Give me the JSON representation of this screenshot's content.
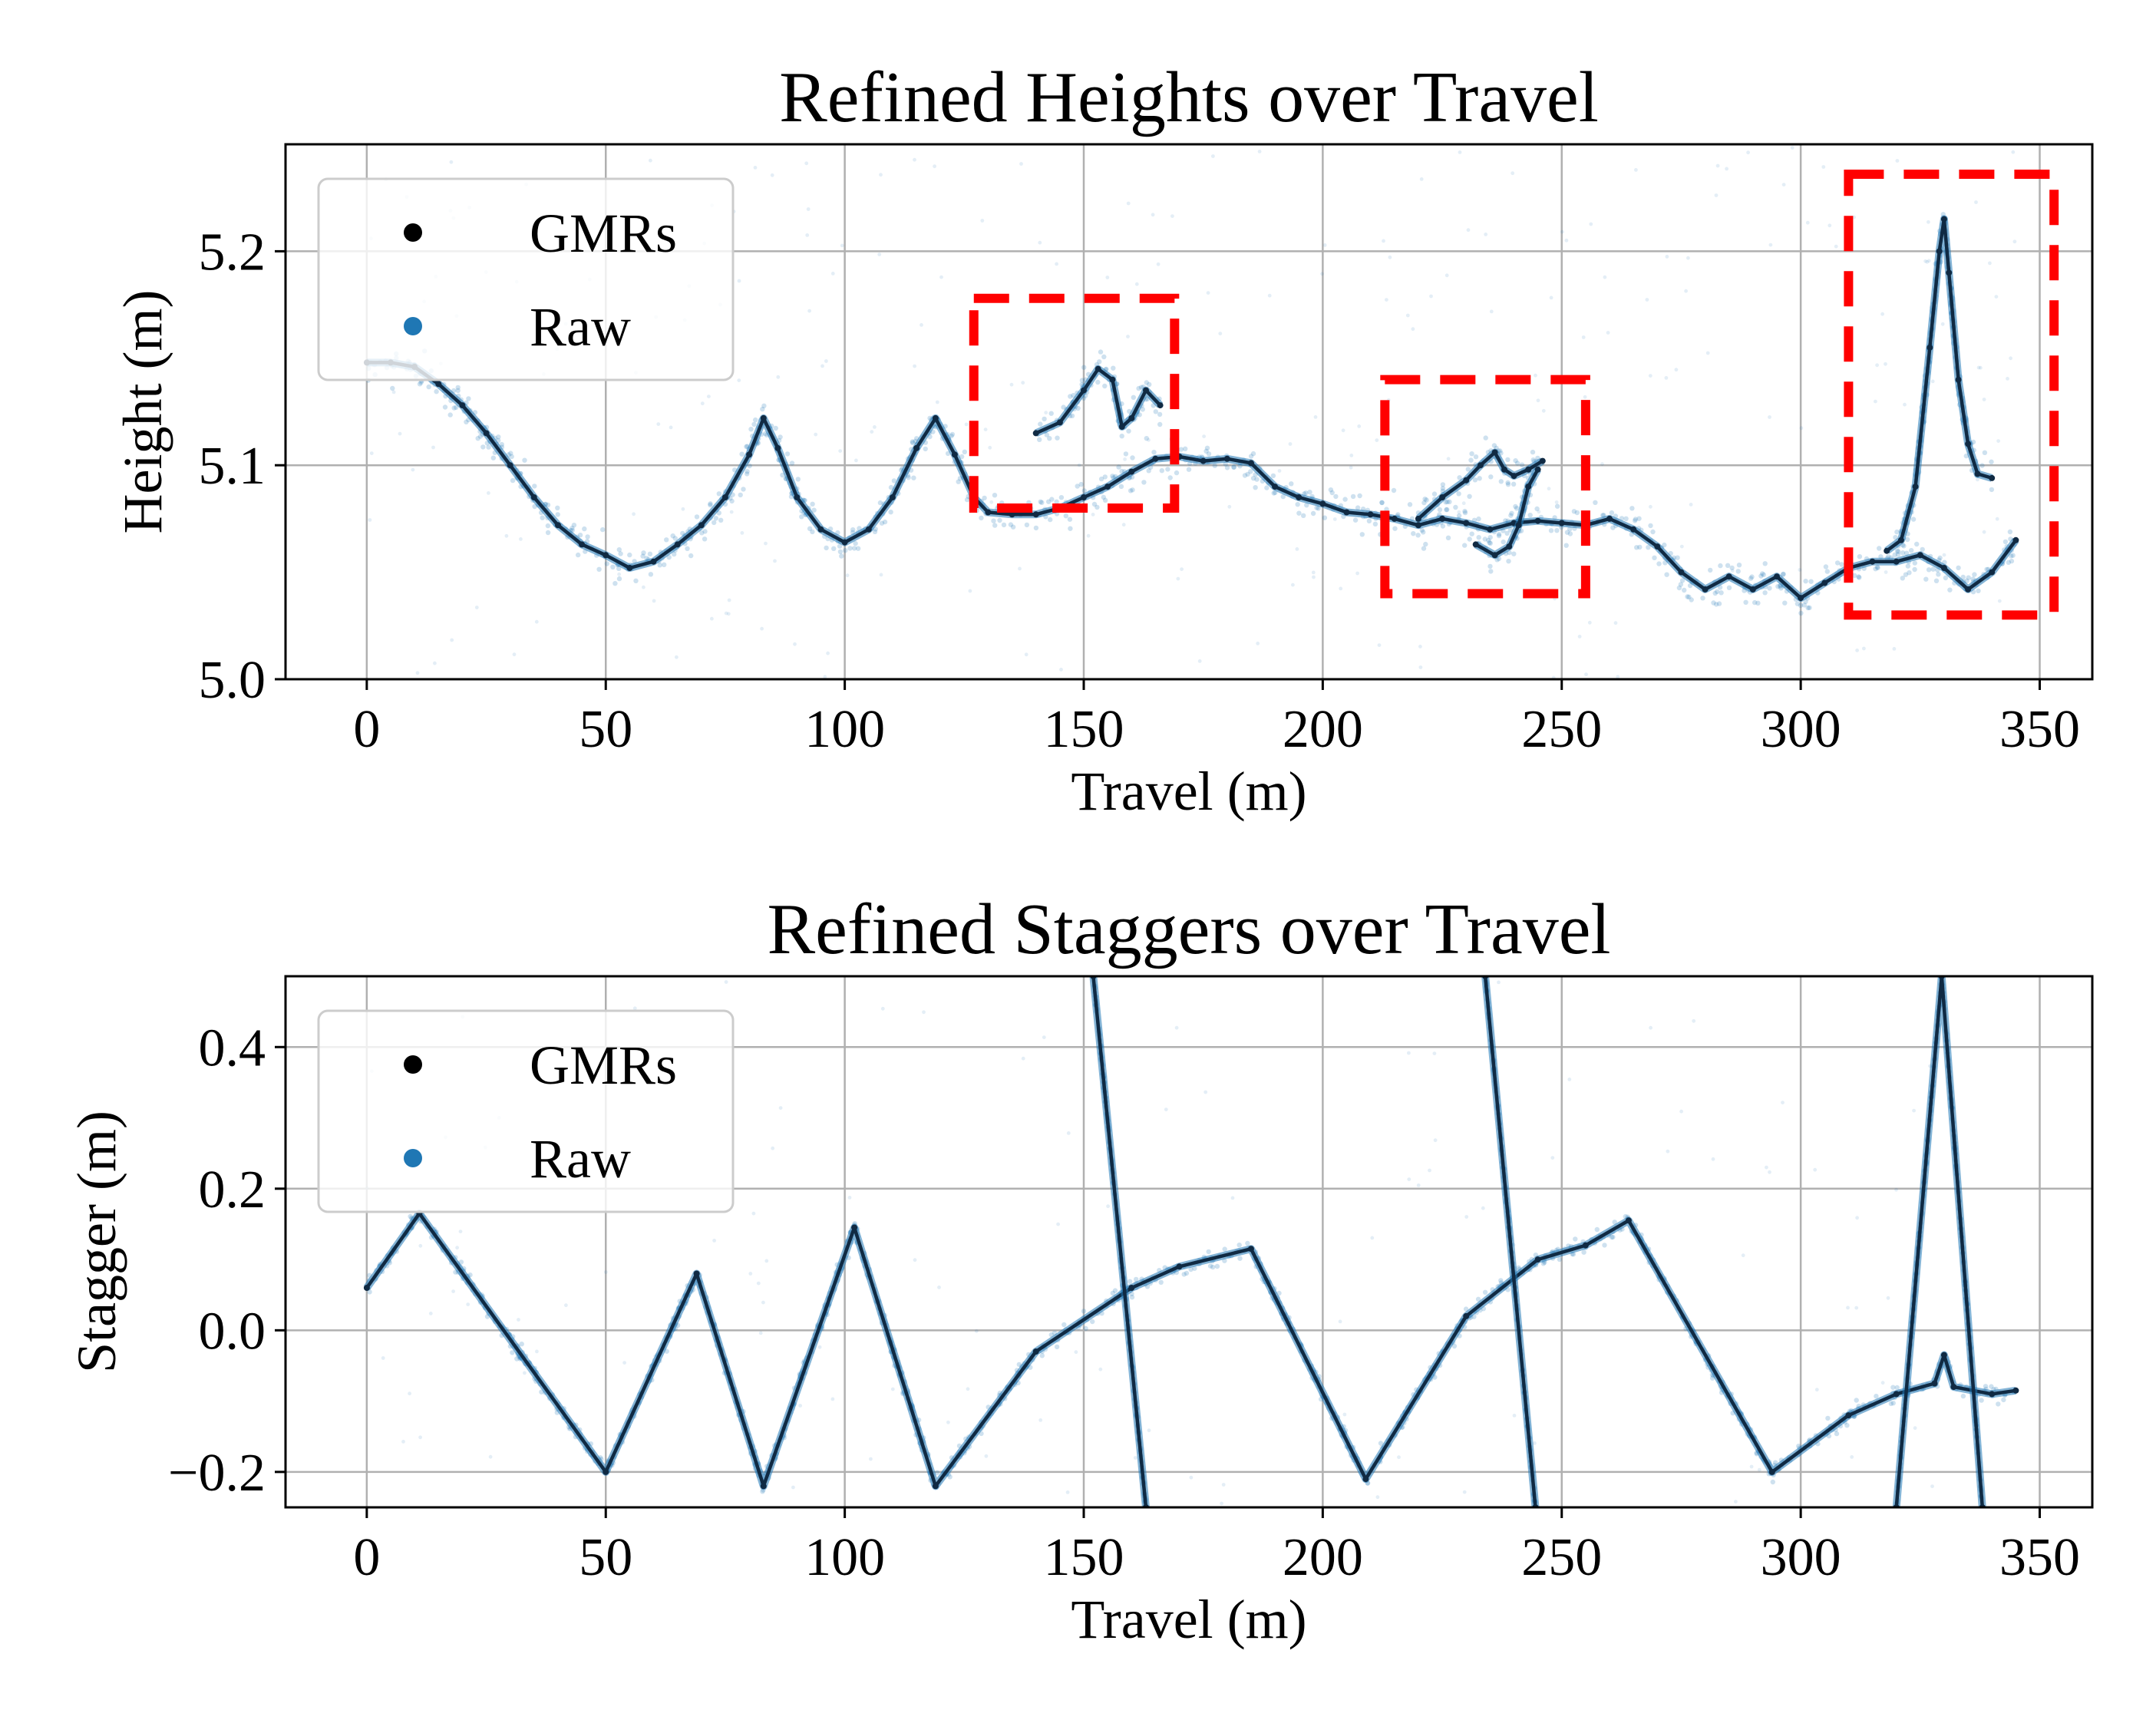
{
  "colors": {
    "gmr": "#102a43",
    "raw": "#1f77b4",
    "highlight": "#ff0000"
  },
  "chart_data": [
    {
      "type": "scatter",
      "title": "Refined Heights over Travel",
      "xlabel": "Travel (m)",
      "ylabel": "Height (m)",
      "xlim": [
        -17,
        361
      ],
      "ylim": [
        5.0,
        5.25
      ],
      "xticks": [
        0,
        50,
        100,
        150,
        200,
        250,
        300,
        350
      ],
      "yticks": [
        5.0,
        5.1,
        5.2
      ],
      "ytick_labels": [
        "5.0",
        "5.1",
        "5.2"
      ],
      "grid": true,
      "legend": {
        "placement": "top-left",
        "entries": [
          {
            "label": "GMRs",
            "color": "#000000"
          },
          {
            "label": "Raw",
            "color": "#1f77b4"
          }
        ]
      },
      "series": [
        {
          "name": "GMRs",
          "role": "trace",
          "x": [
            0,
            5,
            10,
            15,
            20,
            25,
            30,
            35,
            40,
            45,
            50,
            55,
            60,
            65,
            70,
            75,
            80,
            83,
            86,
            90,
            95,
            100,
            105,
            110,
            115,
            119,
            123,
            127,
            130,
            135,
            140,
            145,
            150,
            155,
            160,
            165,
            170,
            175,
            180,
            185,
            190,
            195,
            200,
            205,
            210,
            215,
            220,
            225,
            230,
            235,
            240,
            245,
            250,
            255,
            260,
            265,
            270,
            275,
            280,
            285,
            290,
            295,
            300,
            305,
            310,
            315,
            320,
            325,
            330,
            335,
            340,
            345
          ],
          "y": [
            5.148,
            5.148,
            5.146,
            5.138,
            5.128,
            5.115,
            5.1,
            5.085,
            5.072,
            5.063,
            5.058,
            5.052,
            5.055,
            5.063,
            5.072,
            5.085,
            5.105,
            5.122,
            5.108,
            5.085,
            5.07,
            5.064,
            5.07,
            5.085,
            5.108,
            5.122,
            5.105,
            5.085,
            5.078,
            5.077,
            5.077,
            5.08,
            5.085,
            5.09,
            5.097,
            5.103,
            5.104,
            5.102,
            5.103,
            5.101,
            5.09,
            5.085,
            5.082,
            5.078,
            5.077,
            5.075,
            5.072,
            5.075,
            5.073,
            5.07,
            5.073,
            5.074,
            5.073,
            5.072,
            5.075,
            5.07,
            5.062,
            5.05,
            5.042,
            5.048,
            5.042,
            5.048,
            5.038,
            5.045,
            5.052,
            5.055,
            5.055,
            5.058,
            5.052,
            5.042,
            5.05,
            5.065
          ]
        },
        {
          "name": "GMRs",
          "role": "branch-1",
          "x": [
            140,
            145,
            150,
            153,
            156,
            158,
            160,
            163,
            166
          ],
          "y": [
            5.115,
            5.12,
            5.135,
            5.145,
            5.14,
            5.118,
            5.122,
            5.135,
            5.128
          ]
        },
        {
          "name": "GMRs",
          "role": "branch-2",
          "x": [
            220,
            225,
            230,
            233,
            236,
            238,
            240,
            243,
            246
          ],
          "y": [
            5.075,
            5.085,
            5.093,
            5.1,
            5.106,
            5.098,
            5.095,
            5.098,
            5.102
          ]
        },
        {
          "name": "GMRs",
          "role": "branch-3",
          "x": [
            232,
            236,
            239,
            241,
            243,
            245
          ],
          "y": [
            5.063,
            5.058,
            5.062,
            5.072,
            5.09,
            5.098
          ]
        },
        {
          "name": "GMRs",
          "role": "branch-4",
          "x": [
            318,
            321,
            324,
            327,
            329,
            330,
            331,
            333,
            335,
            337,
            340
          ],
          "y": [
            5.06,
            5.065,
            5.09,
            5.155,
            5.2,
            5.215,
            5.19,
            5.14,
            5.11,
            5.096,
            5.094
          ]
        }
      ],
      "annotations": [
        {
          "type": "dashed-box",
          "x": [
            127,
            169
          ],
          "y": [
            5.08,
            5.178
          ]
        },
        {
          "type": "dashed-box",
          "x": [
            213,
            255
          ],
          "y": [
            5.04,
            5.14
          ]
        },
        {
          "type": "dashed-box",
          "x": [
            310,
            353
          ],
          "y": [
            5.03,
            5.236
          ]
        }
      ]
    },
    {
      "type": "scatter",
      "title": "Refined Staggers over Travel",
      "xlabel": "Travel (m)",
      "ylabel": "Stagger (m)",
      "xlim": [
        -17,
        361
      ],
      "ylim": [
        -0.25,
        0.5
      ],
      "xticks": [
        0,
        50,
        100,
        150,
        200,
        250,
        300,
        350
      ],
      "yticks": [
        -0.2,
        0.0,
        0.2,
        0.4
      ],
      "ytick_labels": [
        "−0.2",
        "0.0",
        "0.2",
        "0.4"
      ],
      "grid": true,
      "legend": {
        "placement": "top-left",
        "entries": [
          {
            "label": "GMRs",
            "color": "#000000"
          },
          {
            "label": "Raw",
            "color": "#1f77b4"
          }
        ]
      },
      "series": [
        {
          "name": "GMRs",
          "role": "trace",
          "x": [
            0,
            11,
            50,
            69,
            83,
            102,
            119,
            140,
            160,
            170,
            185,
            209,
            230,
            245,
            255,
            264,
            294,
            310,
            320,
            328,
            330,
            332,
            340,
            345
          ],
          "y": [
            0.06,
            0.165,
            -0.2,
            0.08,
            -0.22,
            0.145,
            -0.22,
            -0.03,
            0.06,
            0.09,
            0.115,
            -0.21,
            0.02,
            0.1,
            0.12,
            0.155,
            -0.2,
            -0.12,
            -0.09,
            -0.075,
            -0.035,
            -0.08,
            -0.09,
            -0.085
          ]
        },
        {
          "name": "GMRs",
          "role": "branch-1",
          "x": [
            152,
            163
          ],
          "y": [
            0.5,
            -0.25
          ]
        },
        {
          "name": "GMRs",
          "role": "branch-2",
          "x": [
            234,
            244.5
          ],
          "y": [
            0.5,
            -0.25
          ]
        },
        {
          "name": "GMRs",
          "role": "branch-3",
          "x": [
            320,
            329.5,
            338
          ],
          "y": [
            -0.25,
            0.5,
            -0.25
          ]
        }
      ]
    }
  ]
}
